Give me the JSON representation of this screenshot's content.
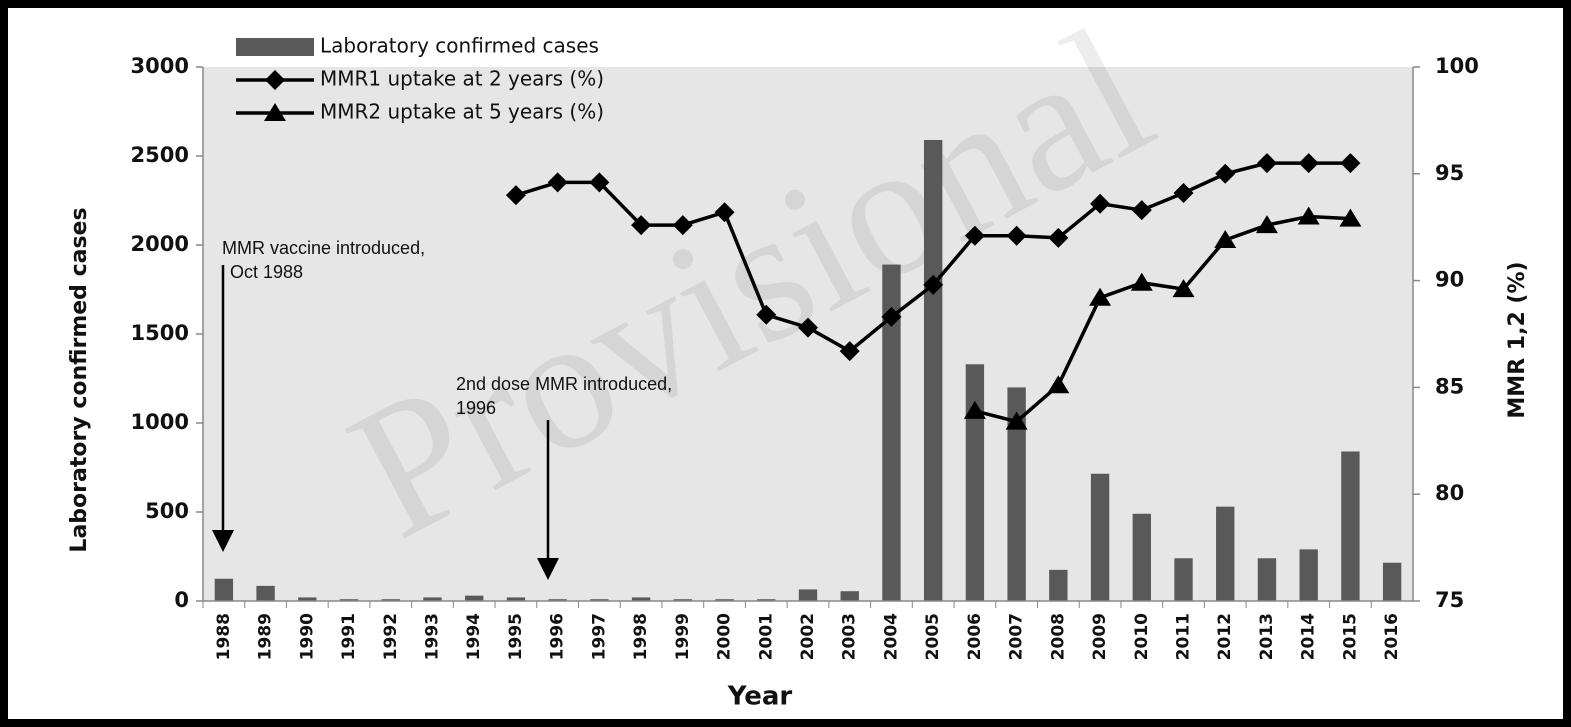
{
  "chart_data": {
    "type": "combo",
    "watermark": "Provisional",
    "x_label": "Year",
    "y_label": "Laboratory confirmed cases",
    "y2_label": "MMR 1,2 (%)",
    "categories": [
      "1988",
      "1989",
      "1990",
      "1991",
      "1992",
      "1993",
      "1994",
      "1995",
      "1996",
      "1997",
      "1998",
      "1999",
      "2000",
      "2001",
      "2002",
      "2003",
      "2004",
      "2005",
      "2006",
      "2007",
      "2008",
      "2009",
      "2010",
      "2011",
      "2012",
      "2013",
      "2014",
      "2015",
      "2016"
    ],
    "series": [
      {
        "name": "Laboratory confirmed cases",
        "type": "bar",
        "color": "#595959",
        "values": [
          125,
          85,
          20,
          10,
          10,
          20,
          30,
          20,
          10,
          10,
          20,
          10,
          10,
          10,
          65,
          55,
          1890,
          2590,
          1330,
          1200,
          175,
          715,
          490,
          240,
          530,
          240,
          290,
          840,
          215
        ]
      },
      {
        "name": "MMR1 uptake at 2 years (%)",
        "type": "line",
        "marker": "diamond",
        "color": "#000000",
        "axis": "y2",
        "values": [
          null,
          null,
          null,
          null,
          null,
          null,
          null,
          94.0,
          94.6,
          94.6,
          92.6,
          92.6,
          93.2,
          88.4,
          87.8,
          86.7,
          88.3,
          89.8,
          92.1,
          92.1,
          92.0,
          93.6,
          93.3,
          94.1,
          95.0,
          95.5,
          95.5,
          95.5,
          null
        ]
      },
      {
        "name": "MMR2 uptake at 5 years (%)",
        "type": "line",
        "marker": "triangle",
        "color": "#000000",
        "axis": "y2",
        "values": [
          null,
          null,
          null,
          null,
          null,
          null,
          null,
          null,
          null,
          null,
          null,
          null,
          null,
          null,
          null,
          null,
          null,
          null,
          83.9,
          83.4,
          85.1,
          89.2,
          89.9,
          89.6,
          91.9,
          92.6,
          93.0,
          92.9,
          null
        ]
      }
    ],
    "ylim": [
      0,
      3000
    ],
    "yticks": [
      0,
      500,
      1000,
      1500,
      2000,
      2500,
      3000
    ],
    "y2lim": [
      75,
      100
    ],
    "y2ticks": [
      75,
      80,
      85,
      90,
      95,
      100
    ],
    "grid": false,
    "legend": "top-left",
    "annotations": [
      {
        "lines": [
          "MMR vaccine introduced,",
          "Oct 1988"
        ]
      },
      {
        "lines": [
          "2nd dose MMR introduced,",
          "1996"
        ]
      }
    ]
  }
}
